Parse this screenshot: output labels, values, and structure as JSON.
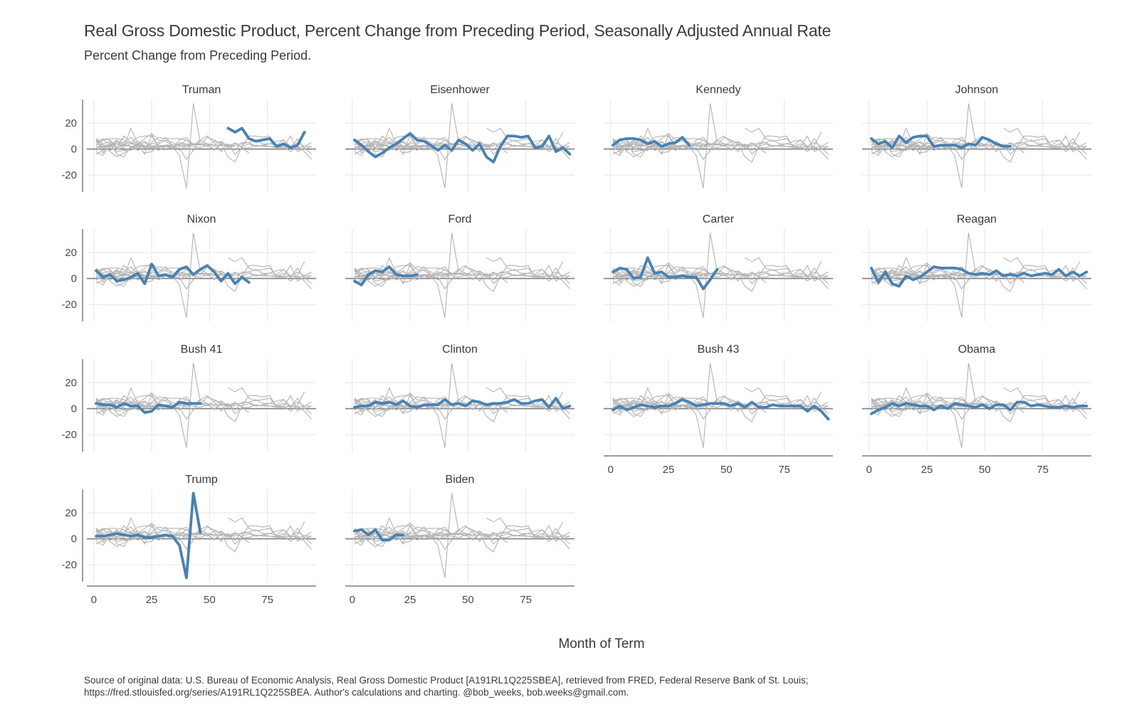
{
  "title": "Real Gross Domestic Product, Percent Change from Preceding Period, Seasonally Adjusted Annual Rate",
  "subtitle": "Percent Change from Preceding Period.",
  "caption_line1": "Source of original data: U.S. Bureau of Economic Analysis, Real Gross Domestic Product [A191RL1Q225SBEA], retrieved from FRED, Federal Reserve Bank of St. Louis;",
  "caption_line2": "https://fred.stlouisfed.org/series/A191RL1Q225SBEA. Author's calculations and charting. @bob_weeks, bob.weeks@gmail.com.",
  "colors": {
    "highlight": "#4682b4",
    "background_series": "#b3b3b3",
    "zero_line": "#7f7f7f",
    "grid": "#e6e6e6",
    "axis": "#7f7f7f"
  },
  "chart_data": {
    "type": "line",
    "facet_layout": "4 columns by 4 rows, small multiples, highlighted president in blue over all others in grey",
    "xlabel": "Month of Term",
    "ylabel": "",
    "xlim": [
      -3,
      96
    ],
    "ylim": [
      -33,
      38
    ],
    "x_ticks": [
      0,
      25,
      50,
      75
    ],
    "y_ticks": [
      -20,
      0,
      20
    ],
    "grid": true,
    "facets": [
      {
        "name": "Truman",
        "x": [
          58,
          61,
          64,
          67,
          70,
          73,
          76,
          79,
          82,
          85,
          88,
          91
        ],
        "y": [
          16,
          13,
          16,
          8,
          6,
          7,
          8,
          2,
          4,
          1,
          3,
          13
        ]
      },
      {
        "name": "Eisenhower",
        "x": [
          1,
          4,
          7,
          10,
          13,
          16,
          19,
          22,
          25,
          28,
          31,
          34,
          37,
          40,
          43,
          46,
          49,
          52,
          55,
          58,
          61,
          64,
          67,
          70,
          73,
          76,
          79,
          82,
          85,
          88,
          91,
          94
        ],
        "y": [
          7,
          3,
          -2,
          -6,
          -3,
          1,
          4,
          8,
          12,
          7,
          6,
          3,
          -1,
          3,
          -1,
          7,
          4,
          -1,
          4,
          -6,
          -10,
          2,
          10,
          10,
          9,
          10,
          1,
          2,
          10,
          -2,
          1,
          -4
        ]
      },
      {
        "name": "Kennedy",
        "x": [
          1,
          4,
          7,
          10,
          13,
          16,
          19,
          22,
          25,
          28,
          31,
          34
        ],
        "y": [
          3,
          7,
          8,
          8,
          7,
          4,
          6,
          2,
          4,
          5,
          9,
          3
        ]
      },
      {
        "name": "Johnson",
        "x": [
          1,
          4,
          7,
          10,
          13,
          16,
          19,
          22,
          25,
          28,
          31,
          34,
          37,
          40,
          43,
          46,
          49,
          52,
          55,
          58,
          61
        ],
        "y": [
          8,
          4,
          6,
          1,
          10,
          5,
          9,
          10,
          10,
          2,
          3,
          3,
          3,
          1,
          4,
          3,
          9,
          7,
          4,
          2,
          2
        ]
      },
      {
        "name": "Nixon",
        "x": [
          1,
          4,
          7,
          10,
          13,
          16,
          19,
          22,
          25,
          28,
          31,
          34,
          37,
          40,
          43,
          46,
          49,
          52,
          55,
          58,
          61,
          64,
          67
        ],
        "y": [
          6,
          1,
          3,
          -2,
          -1,
          1,
          4,
          -4,
          11,
          2,
          3,
          1,
          7,
          9,
          3,
          7,
          10,
          5,
          -2,
          4,
          -4,
          1,
          -3
        ]
      },
      {
        "name": "Ford",
        "x": [
          1,
          4,
          7,
          10,
          13,
          16,
          19,
          22,
          25,
          28
        ],
        "y": [
          -2,
          -5,
          3,
          6,
          5,
          9,
          3,
          2,
          2,
          3
        ]
      },
      {
        "name": "Carter",
        "x": [
          1,
          4,
          7,
          10,
          13,
          16,
          19,
          22,
          25,
          28,
          31,
          34,
          37,
          40,
          43,
          46
        ],
        "y": [
          5,
          8,
          7,
          0,
          1,
          16,
          4,
          5,
          1,
          1,
          2,
          1,
          1,
          -8,
          -1,
          7
        ]
      },
      {
        "name": "Reagan",
        "x": [
          1,
          4,
          7,
          10,
          13,
          16,
          19,
          22,
          25,
          28,
          31,
          34,
          37,
          40,
          43,
          46,
          49,
          52,
          55,
          58,
          61,
          64,
          67,
          70,
          73,
          76,
          79,
          82,
          85,
          88,
          91,
          94
        ],
        "y": [
          8,
          -3,
          5,
          -4,
          -6,
          2,
          -1,
          1,
          5,
          9,
          8,
          8,
          8,
          7,
          4,
          3,
          4,
          3,
          6,
          2,
          3,
          2,
          4,
          2,
          3,
          4,
          3,
          7,
          2,
          5,
          2,
          5
        ]
      },
      {
        "name": "Bush 41",
        "x": [
          1,
          4,
          7,
          10,
          13,
          16,
          19,
          22,
          25,
          28,
          31,
          34,
          37,
          40,
          43,
          46
        ],
        "y": [
          4,
          3,
          3,
          1,
          4,
          2,
          2,
          -3,
          -2,
          3,
          2,
          1,
          5,
          4,
          4,
          4
        ]
      },
      {
        "name": "Clinton",
        "x": [
          1,
          4,
          7,
          10,
          13,
          16,
          19,
          22,
          25,
          28,
          31,
          34,
          37,
          40,
          43,
          46,
          49,
          52,
          55,
          58,
          61,
          64,
          67,
          70,
          73,
          76,
          79,
          82,
          85,
          88,
          91,
          94
        ],
        "y": [
          1,
          2,
          2,
          5,
          4,
          5,
          3,
          6,
          2,
          1,
          3,
          3,
          3,
          7,
          3,
          4,
          2,
          6,
          5,
          3,
          4,
          4,
          5,
          7,
          4,
          4,
          6,
          7,
          1,
          8,
          0,
          2
        ]
      },
      {
        "name": "Bush 43",
        "x": [
          1,
          4,
          7,
          10,
          13,
          16,
          19,
          22,
          25,
          28,
          31,
          34,
          37,
          40,
          43,
          46,
          49,
          52,
          55,
          58,
          61,
          64,
          67,
          70,
          73,
          76,
          79,
          82,
          85,
          88,
          91,
          94
        ],
        "y": [
          -1,
          2,
          -1,
          1,
          3,
          2,
          1,
          2,
          2,
          4,
          7,
          5,
          2,
          3,
          4,
          4,
          4,
          2,
          4,
          1,
          5,
          1,
          1,
          3,
          2,
          2,
          2,
          2,
          -2,
          2,
          -2,
          -8
        ]
      },
      {
        "name": "Obama",
        "x": [
          1,
          4,
          7,
          10,
          13,
          16,
          19,
          22,
          25,
          28,
          31,
          34,
          37,
          40,
          43,
          46,
          49,
          52,
          55,
          58,
          61,
          64,
          67,
          70,
          73,
          76,
          79,
          82,
          85,
          88,
          91,
          94
        ],
        "y": [
          -4,
          -1,
          1,
          4,
          2,
          4,
          3,
          2,
          2,
          -1,
          2,
          0,
          4,
          3,
          2,
          1,
          3,
          0,
          3,
          3,
          -1,
          5,
          5,
          2,
          3,
          2,
          1,
          1,
          2,
          1,
          2,
          2
        ]
      },
      {
        "name": "Trump",
        "x": [
          1,
          4,
          7,
          10,
          13,
          16,
          19,
          22,
          25,
          28,
          31,
          34,
          37,
          40,
          43,
          46
        ],
        "y": [
          2,
          2,
          3,
          4,
          3,
          2,
          3,
          1,
          1,
          2,
          3,
          2,
          -5,
          -30,
          35,
          5
        ]
      },
      {
        "name": "Biden",
        "x": [
          1,
          4,
          7,
          10,
          13,
          16,
          19,
          22
        ],
        "y": [
          6,
          7,
          3,
          7,
          -1,
          -1,
          3,
          3
        ]
      }
    ]
  }
}
